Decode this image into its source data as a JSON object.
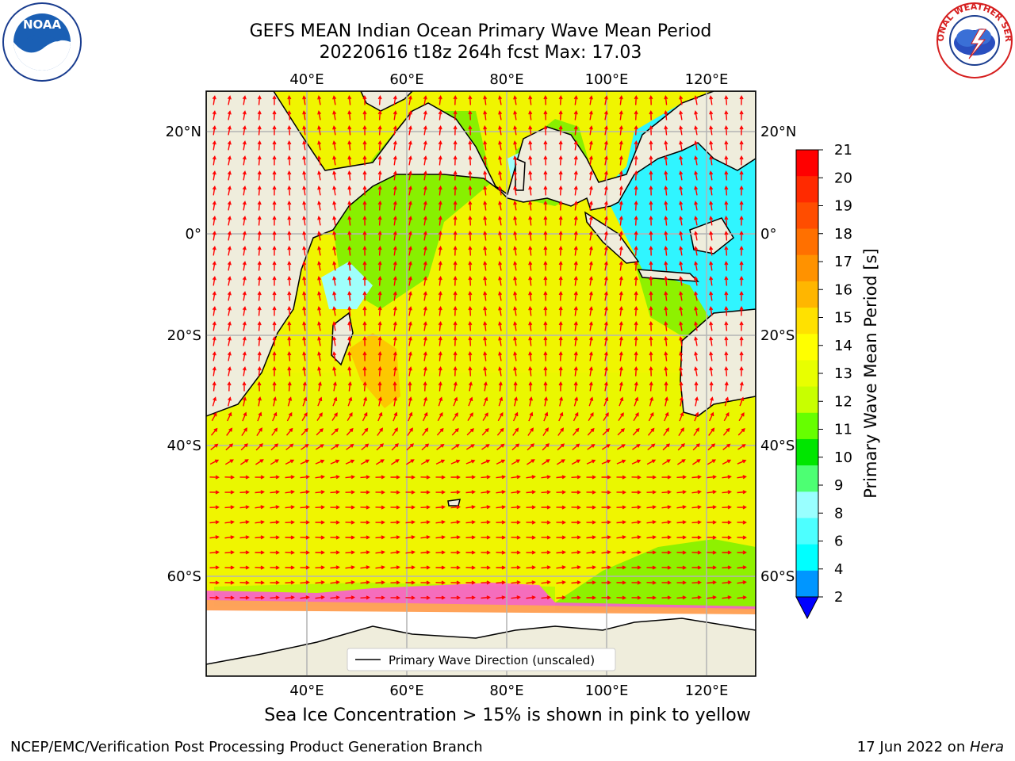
{
  "title": {
    "line1": "GEFS MEAN Indian Ocean Primary Wave Mean Period",
    "line2": "20220616 t18z 264h fcst   Max: 17.03"
  },
  "logos": {
    "left_icon": "noaa-logo-icon",
    "right_icon": "nws-logo-icon",
    "right_text": "NATIONAL WEATHER SERVICE"
  },
  "map": {
    "lon_labels": [
      "40°E",
      "60°E",
      "80°E",
      "100°E",
      "120°E"
    ],
    "lat_labels_left": [
      "20°N",
      "0°",
      "20°S",
      "40°S",
      "60°S"
    ],
    "lat_labels_right": [
      "20°N",
      "0°",
      "20°S",
      "40°S",
      "60°S"
    ],
    "legend_label": "Primary Wave Direction (unscaled)",
    "land_color": "#efeddc",
    "ice_color": "#ffffff"
  },
  "colorbar": {
    "label": "Primary Wave Mean Period [s]",
    "ticks": [
      "21",
      "20",
      "19",
      "18",
      "17",
      "16",
      "15",
      "14",
      "13",
      "12",
      "11",
      "10",
      "9",
      "8",
      "6",
      "4",
      "2"
    ],
    "colors": [
      "#ff0000",
      "#ff2a00",
      "#ff4d00",
      "#ff7000",
      "#ff9200",
      "#ffb600",
      "#ffe100",
      "#ffff00",
      "#e8ff00",
      "#c8ff00",
      "#66ff00",
      "#00e600",
      "#4dff73",
      "#99ffff",
      "#4dffff",
      "#00ffff",
      "#0096ff"
    ],
    "under_color": "#0000ff"
  },
  "notes": {
    "sea_ice": "Sea Ice Concentration > 15% is shown in pink to yellow"
  },
  "footer": {
    "left": "NCEP/EMC/Verification Post Processing Product Generation Branch",
    "date": "17 Jun 2022 on ",
    "host": "Hera"
  }
}
